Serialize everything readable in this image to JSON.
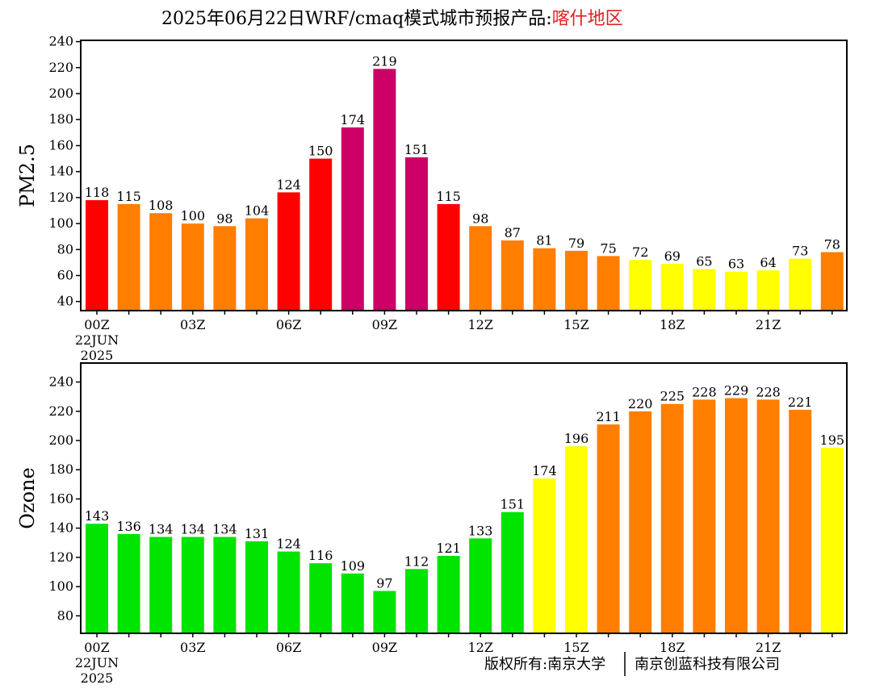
{
  "title": {
    "main": "2025年06月22日WRF/cmaq模式城市预报产品:",
    "location": "喀什地区",
    "location_color": "#e02020"
  },
  "credit": {
    "left": "版权所有:南京大学",
    "right": "南京创蓝科技有限公司"
  },
  "colors": {
    "green": "#00e400",
    "yellow": "#ffff00",
    "orange": "#ff7e00",
    "red": "#ff0000",
    "purple": "#cc0066"
  },
  "chart_data": [
    {
      "type": "bar",
      "ylabel": "PM2.5",
      "ylim": [
        33,
        241
      ],
      "yticks": [
        40,
        60,
        80,
        100,
        120,
        140,
        160,
        180,
        200,
        220,
        240
      ],
      "x": [
        0,
        1,
        2,
        3,
        4,
        5,
        6,
        7,
        8,
        9,
        10,
        11,
        12,
        13,
        14,
        15,
        16,
        17,
        18,
        19,
        20,
        21,
        22,
        23
      ],
      "xtick_labels": [
        {
          "hour": 0,
          "lines": [
            "00Z",
            "22JUN",
            "2025"
          ]
        },
        {
          "hour": 3,
          "lines": [
            "03Z"
          ]
        },
        {
          "hour": 6,
          "lines": [
            "06Z"
          ]
        },
        {
          "hour": 9,
          "lines": [
            "09Z"
          ]
        },
        {
          "hour": 12,
          "lines": [
            "12Z"
          ]
        },
        {
          "hour": 15,
          "lines": [
            "15Z"
          ]
        },
        {
          "hour": 18,
          "lines": [
            "18Z"
          ]
        },
        {
          "hour": 21,
          "lines": [
            "21Z"
          ]
        }
      ],
      "values": [
        118,
        115,
        108,
        100,
        98,
        104,
        124,
        150,
        174,
        219,
        151,
        115,
        98,
        87,
        81,
        79,
        75,
        72,
        69,
        65,
        63,
        64,
        73,
        78
      ],
      "bar_colors": [
        "red",
        "orange",
        "orange",
        "orange",
        "orange",
        "orange",
        "red",
        "red",
        "purple",
        "purple",
        "purple",
        "red",
        "orange",
        "orange",
        "orange",
        "orange",
        "orange",
        "yellow",
        "yellow",
        "yellow",
        "yellow",
        "yellow",
        "yellow",
        "orange"
      ],
      "data_labels": true,
      "grid": false
    },
    {
      "type": "bar",
      "ylabel": "Ozone",
      "ylim": [
        68,
        253
      ],
      "yticks": [
        80,
        100,
        120,
        140,
        160,
        180,
        200,
        220,
        240
      ],
      "x": [
        0,
        1,
        2,
        3,
        4,
        5,
        6,
        7,
        8,
        9,
        10,
        11,
        12,
        13,
        14,
        15,
        16,
        17,
        18,
        19,
        20,
        21,
        22,
        23
      ],
      "xtick_labels": [
        {
          "hour": 0,
          "lines": [
            "00Z",
            "22JUN",
            "2025"
          ]
        },
        {
          "hour": 3,
          "lines": [
            "03Z"
          ]
        },
        {
          "hour": 6,
          "lines": [
            "06Z"
          ]
        },
        {
          "hour": 9,
          "lines": [
            "09Z"
          ]
        },
        {
          "hour": 12,
          "lines": [
            "12Z"
          ]
        },
        {
          "hour": 15,
          "lines": [
            "15Z"
          ]
        },
        {
          "hour": 18,
          "lines": [
            "18Z"
          ]
        },
        {
          "hour": 21,
          "lines": [
            "21Z"
          ]
        }
      ],
      "values": [
        143,
        136,
        134,
        134,
        134,
        131,
        124,
        116,
        109,
        97,
        112,
        121,
        133,
        151,
        174,
        196,
        211,
        220,
        225,
        228,
        229,
        228,
        221,
        195
      ],
      "bar_colors": [
        "green",
        "green",
        "green",
        "green",
        "green",
        "green",
        "green",
        "green",
        "green",
        "green",
        "green",
        "green",
        "green",
        "green",
        "yellow",
        "yellow",
        "orange",
        "orange",
        "orange",
        "orange",
        "orange",
        "orange",
        "orange",
        "yellow"
      ],
      "data_labels": true,
      "grid": false
    }
  ]
}
